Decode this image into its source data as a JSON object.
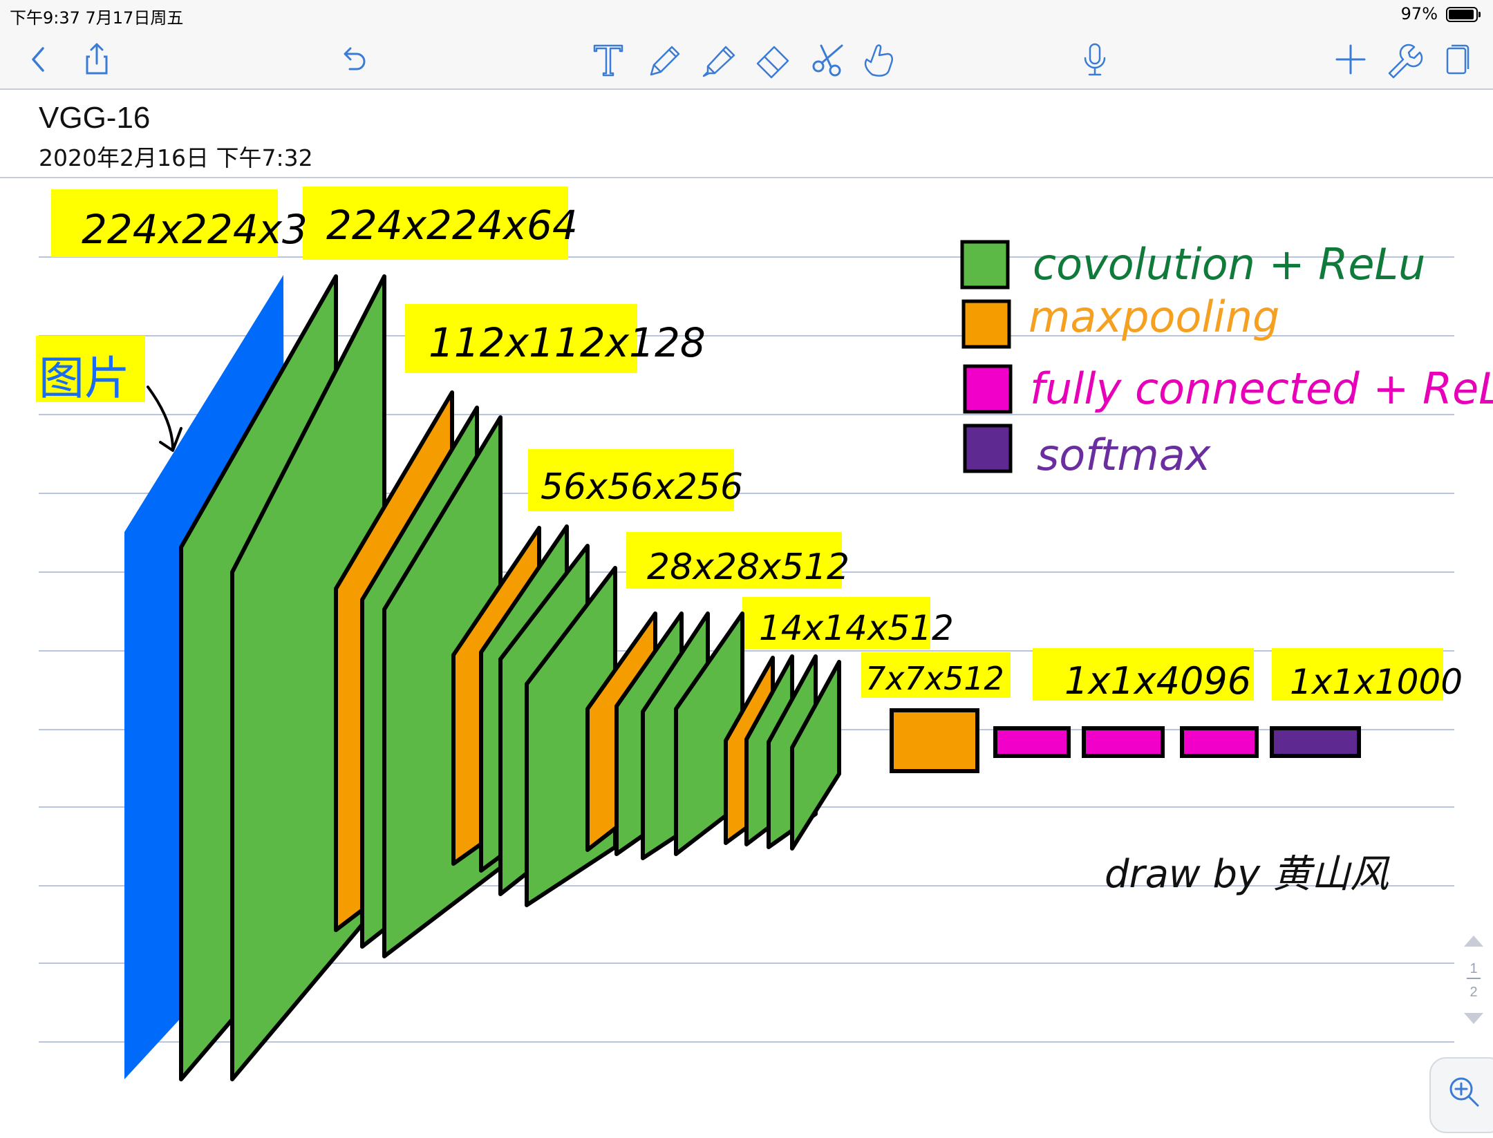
{
  "status_bar": {
    "time": "下午9:37   7月17日周五",
    "battery": "97%"
  },
  "toolbar": {
    "left_icons": [
      "back-icon",
      "share-icon",
      "undo-icon"
    ],
    "center_icons": [
      "text-tool-icon",
      "pen-tool-icon",
      "highlighter-icon",
      "eraser-icon",
      "scissors-icon",
      "hand-icon"
    ],
    "right_icons": [
      "microphone-icon",
      "add-icon",
      "wrench-icon",
      "pages-icon"
    ],
    "accent_color": "#3a7bd5"
  },
  "note": {
    "title": "VGG-16",
    "date": "2020年2月16日 下午7:32"
  },
  "drawing": {
    "dimension_labels": [
      "224x224x3",
      "224x224x64",
      "112x112x128",
      "56x56x256",
      "28x28x512",
      "14x14x512",
      "7x7x512",
      "1x1x4096",
      "1x1x1000"
    ],
    "image_label": "图片",
    "legend": [
      {
        "label": "covolution + ReLu",
        "color": "#5cb946",
        "text_color": "#0f7a3a"
      },
      {
        "label": "maxpooling",
        "color": "#f59d00",
        "text_color": "#f5a020"
      },
      {
        "label": "fully connected + ReLu",
        "color": "#f000c8",
        "text_color": "#e800b8"
      },
      {
        "label": "softmax",
        "color": "#5e2a91",
        "text_color": "#6a2ea0"
      }
    ],
    "signature": "draw by 黄山风",
    "colors": {
      "input": "#006bfa",
      "highlight": "#ffff00",
      "ruled_line": "#b8c4e0"
    }
  },
  "page_indicator": {
    "current": "1",
    "total": "2"
  },
  "zoom_icon": "zoom-in-icon"
}
